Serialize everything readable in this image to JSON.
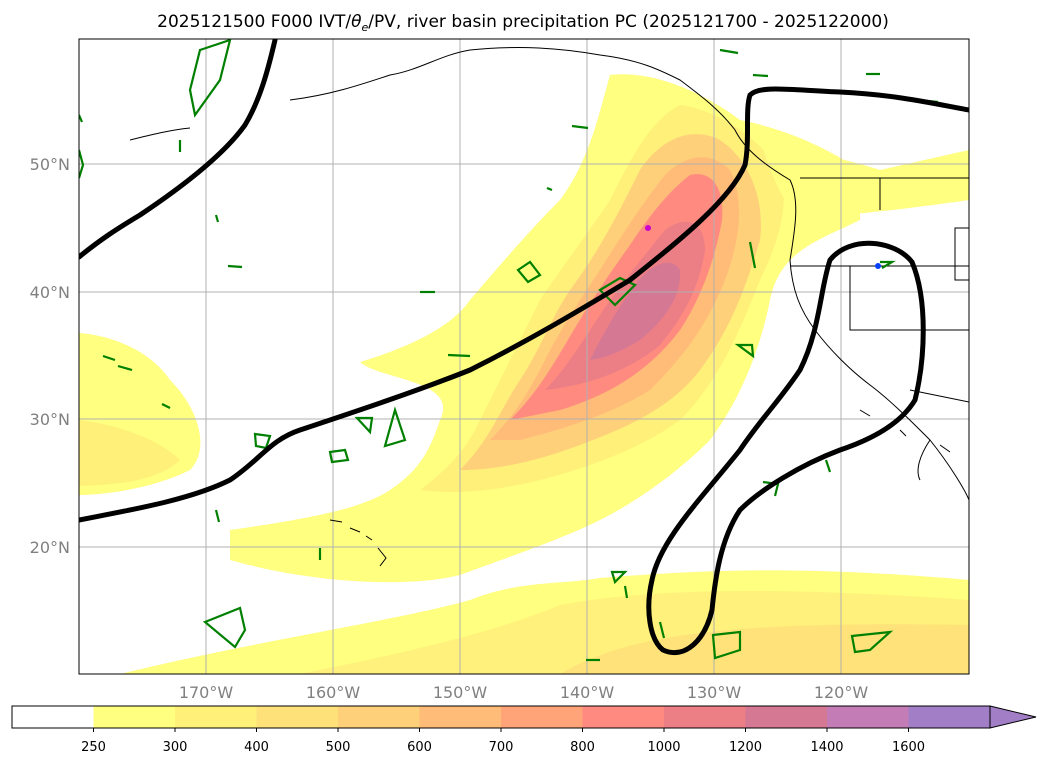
{
  "title_main": "2025121500 F000 IVT/",
  "title_theta": "θ",
  "title_sub": "e",
  "title_rest": "/PV, river basin precipitation PC (2025121700 - 2025122000)",
  "lat_labels": [
    "50°N",
    "40°N",
    "30°N",
    "20°N"
  ],
  "lon_labels": [
    "170°W",
    "160°W",
    "150°W",
    "140°W",
    "130°W",
    "120°W"
  ],
  "colorbar": {
    "ticks": [
      "250",
      "300",
      "400",
      "500",
      "600",
      "700",
      "800",
      "1000",
      "1200",
      "1400",
      "1600"
    ],
    "colors": [
      "#ffffff",
      "#ffff80",
      "#fff07a",
      "#ffe17a",
      "#ffd07a",
      "#ffbb78",
      "#ffa478",
      "#ff8a80",
      "#ec7e86",
      "#d57894",
      "#c47cb6",
      "#a27ec6"
    ],
    "extend": "max"
  },
  "colors": {
    "pv_contour": "#008000",
    "theta_contour": "#000000",
    "coastline": "#000000",
    "grid": "#b0b0b0"
  }
}
